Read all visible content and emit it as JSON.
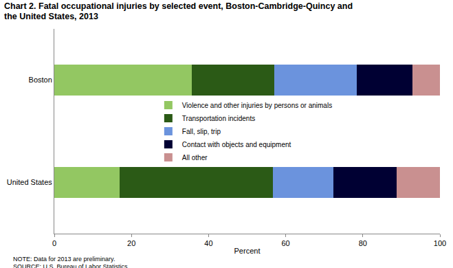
{
  "chart_data": {
    "type": "bar",
    "orientation": "horizontal",
    "stacked": true,
    "title": "Chart 2. Fatal occupational injuries by selected event, Boston-Cambridge-Quincy  and the United States, 2013",
    "xlabel": "Percent",
    "categories": [
      "Boston",
      "United States"
    ],
    "series": [
      {
        "name": "Violence and other injuries by persons or animals",
        "color": "#93c762",
        "values": [
          35.7,
          17.0
        ]
      },
      {
        "name": "Transportation incidents",
        "color": "#2b5a16",
        "values": [
          21.4,
          39.6
        ]
      },
      {
        "name": "Fall, slip, trip",
        "color": "#6b93dd",
        "values": [
          21.4,
          15.8
        ]
      },
      {
        "name": "Contact with objects and equipment",
        "color": "#000033",
        "values": [
          14.3,
          16.4
        ]
      },
      {
        "name": "All other",
        "color": "#c99090",
        "values": [
          7.2,
          11.2
        ]
      }
    ],
    "xlim": [
      0,
      100
    ],
    "xticks": [
      0,
      20,
      40,
      60,
      80,
      100
    ],
    "grid": false,
    "legend": "center",
    "notes": [
      "NOTE: Data for 2013 are preliminary.",
      "SOURCE: U.S. Bureau of Labor Statistics."
    ]
  }
}
